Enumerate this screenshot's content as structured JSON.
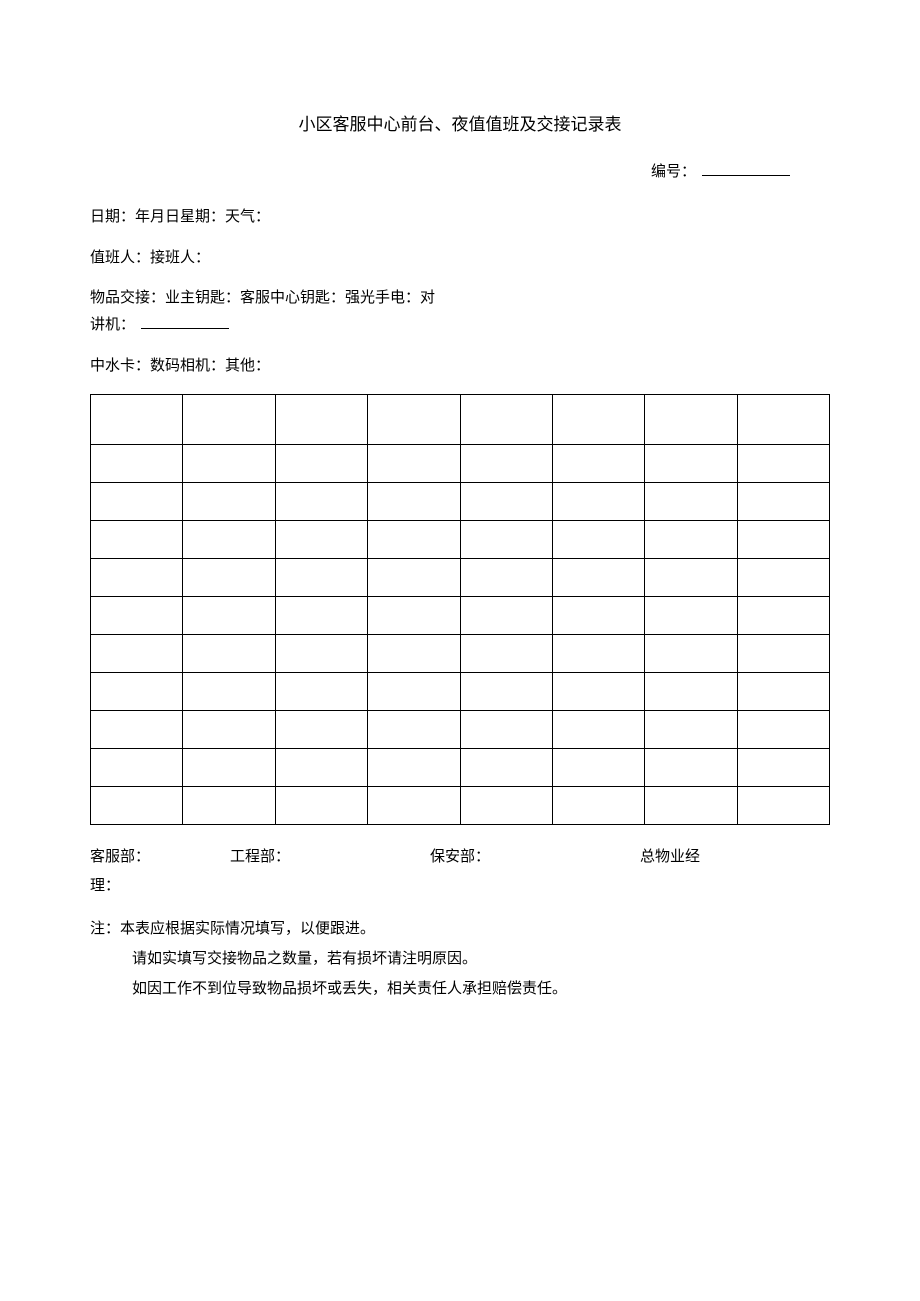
{
  "title": "小区客服中心前台、夜值值班及交接记录表",
  "serial_label": "编号：",
  "line_date": "日期：年月日星期：天气：",
  "line_duty": "值班人：接班人：",
  "handover_l1": "物品交接：业主钥匙：客服中心钥匙：强光手电：对",
  "handover_l2_prefix": "讲机：",
  "line_other": "中水卡：数码相机：其他：",
  "table": {
    "rows": 11,
    "cols": 8
  },
  "sign": {
    "cs": "客服部：",
    "eng": "工程部：",
    "sec": "保安部：",
    "mgr": "总物业经"
  },
  "sign_tail": "理：",
  "notes": {
    "n1": "注：本表应根据实际情况填写，以便跟进。",
    "n2": "请如实填写交接物品之数量，若有损坏请注明原因。",
    "n3": "如因工作不到位导致物品损坏或丢失，相关责任人承担赔偿责任。"
  },
  "colors": {
    "text": "#000000",
    "bg": "#ffffff",
    "border": "#000000"
  }
}
